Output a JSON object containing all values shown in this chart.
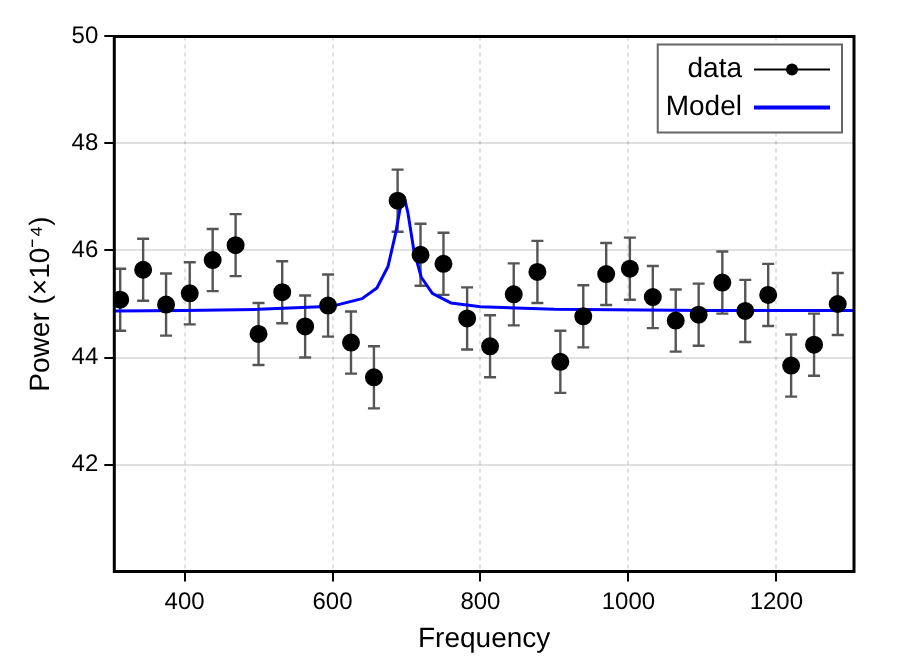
{
  "chart_data": {
    "type": "scatter",
    "xlabel": "Frequency",
    "ylabel": "Power (×10⁻⁴)",
    "xlim": [
      305,
      1305
    ],
    "xticks": [
      400,
      600,
      800,
      1000,
      1200
    ],
    "ylim": [
      40,
      50
    ],
    "yticks": [
      42,
      44,
      46,
      48,
      50
    ],
    "grid": true,
    "legend": "top right",
    "series": [
      {
        "name": "data",
        "color": "#000000",
        "marker": "circle",
        "x": [
          313,
          344,
          375,
          407,
          438,
          469,
          500,
          532,
          563,
          594,
          625,
          656,
          688,
          719,
          750,
          782,
          813,
          845,
          877,
          908,
          939,
          970,
          1002,
          1033,
          1064,
          1095,
          1127,
          1158,
          1189,
          1220,
          1251,
          1283
        ],
        "values": [
          45.08,
          45.64,
          44.99,
          45.2,
          45.82,
          46.1,
          44.44,
          45.22,
          44.58,
          44.97,
          44.28,
          43.63,
          46.93,
          45.92,
          45.75,
          44.73,
          44.21,
          45.18,
          45.6,
          43.92,
          44.77,
          45.56,
          45.66,
          45.13,
          44.69,
          44.8,
          45.4,
          44.87,
          45.17,
          43.85,
          44.24,
          45.0
        ],
        "errors": [
          0.58,
          0.58,
          0.58,
          0.58,
          0.58,
          0.58,
          0.58,
          0.58,
          0.58,
          0.58,
          0.58,
          0.58,
          0.58,
          0.58,
          0.58,
          0.58,
          0.58,
          0.58,
          0.58,
          0.58,
          0.58,
          0.58,
          0.58,
          0.58,
          0.58,
          0.58,
          0.58,
          0.58,
          0.58,
          0.58,
          0.58,
          0.58
        ]
      },
      {
        "name": "Model",
        "type": "line",
        "color": "#0000ff",
        "marker": "none",
        "line_style": "solid",
        "x": [
          305,
          400,
          500,
          600,
          640,
          660,
          675,
          685,
          693,
          697,
          702,
          710,
          720,
          735,
          760,
          800,
          900,
          1100,
          1305
        ],
        "values": [
          44.87,
          44.88,
          44.9,
          44.96,
          45.1,
          45.3,
          45.7,
          46.3,
          46.9,
          47.0,
          46.7,
          46.0,
          45.5,
          45.2,
          45.02,
          44.95,
          44.9,
          44.88,
          44.88
        ]
      }
    ]
  }
}
